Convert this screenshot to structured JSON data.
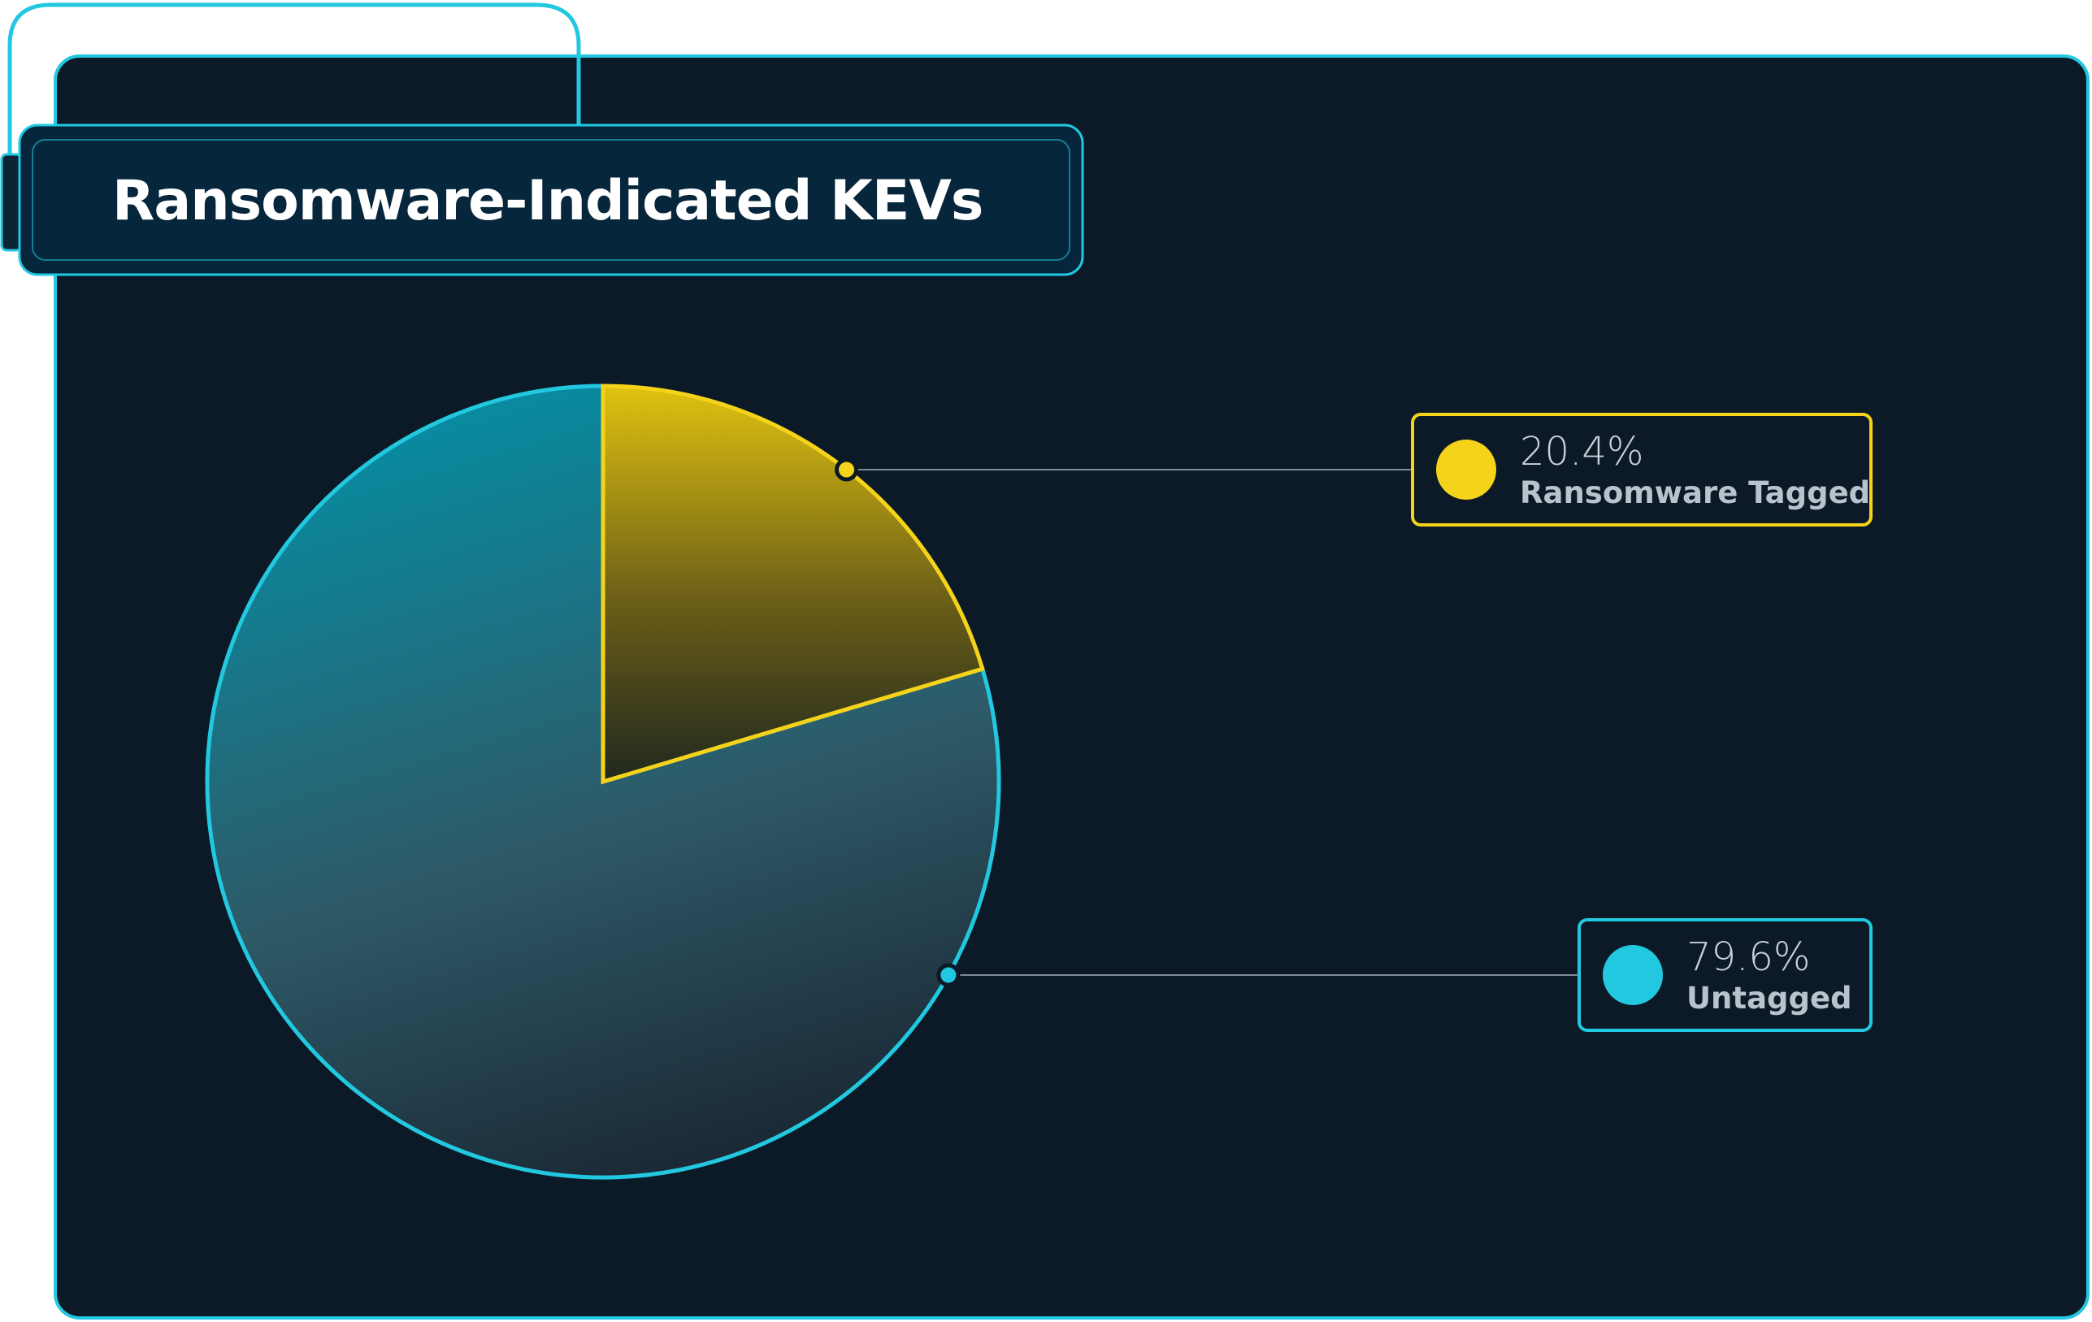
{
  "colors": {
    "background": "#0b1a26",
    "accent_cyan": "#22c8e0",
    "accent_yellow": "#f5d31a",
    "title_panel": "#06263c"
  },
  "chart_data": {
    "type": "pie",
    "title": "Ransomware-Indicated KEVs",
    "slices": [
      {
        "label": "Ransomware Tagged",
        "value": 20.4,
        "display": "20.4%",
        "color": "#f5d31a"
      },
      {
        "label": "Untagged",
        "value": 79.6,
        "display": "79.6%",
        "color": "#22c8e0"
      }
    ],
    "legend": "right",
    "start_angle": "12 o'clock",
    "direction": "clockwise"
  }
}
